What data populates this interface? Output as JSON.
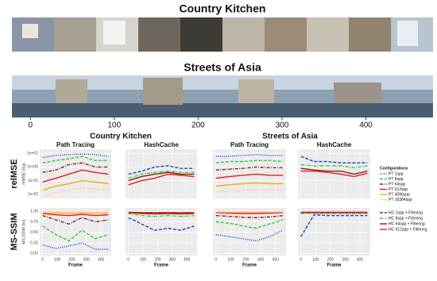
{
  "figure": {
    "strips": [
      {
        "title": "Country Kitchen"
      },
      {
        "title": "Streets of Asia",
        "xlim": [
          -22,
          480
        ],
        "xticks": [
          0,
          100,
          200,
          300,
          400
        ]
      }
    ],
    "groups": [
      "Country Kitchen",
      "Streets of Asia"
    ],
    "rows": [
      "relMSE",
      "MS-SSIM"
    ]
  },
  "chart_data": [
    {
      "type": "line",
      "title": "Path Tracing",
      "ylabel": "relMSE (log)",
      "legend_title": "Configurations",
      "log_y": true,
      "x": [
        0,
        90,
        180,
        270,
        360,
        450
      ],
      "xlim": [
        -20,
        470
      ],
      "xticks": [
        0,
        100,
        200,
        300,
        400
      ],
      "ylim": [
        0.005,
        20
      ],
      "yticks": [
        {
          "value": 10,
          "label": "1e+01"
        },
        {
          "value": 1,
          "label": "1e+00"
        },
        {
          "value": 0.1,
          "label": "1e-01"
        },
        {
          "value": 0.01,
          "label": "1e-02"
        }
      ],
      "grid": true,
      "series": [
        {
          "name": "PT 1spp",
          "color": "#1f3fd0",
          "dash": "dotted",
          "values": [
            5,
            7,
            8,
            9,
            8,
            6
          ]
        },
        {
          "name": "PT 8spp",
          "color": "#33cc33",
          "dash": "dashed",
          "values": [
            2,
            3,
            4,
            6,
            3,
            3
          ]
        },
        {
          "name": "PT 64spp",
          "color": "#8b1a1a",
          "dash": "dashdot",
          "values": [
            0.4,
            0.6,
            1.5,
            2,
            1,
            1
          ]
        },
        {
          "name": "PT 512spp",
          "color": "#e41a1c",
          "dash": "solid",
          "values": [
            0.08,
            0.15,
            0.3,
            0.6,
            0.4,
            0.3
          ]
        },
        {
          "name": "PT 4096spp",
          "color": "#ffa500",
          "dash": "solid",
          "values": [
            0.02,
            0.04,
            0.06,
            0.1,
            0.08,
            0.06
          ]
        },
        {
          "name": "PT 16384spp",
          "color": "#fdd9b5",
          "dash": "solid",
          "values": [
            0.008,
            0.012,
            0.02,
            0.03,
            0.025,
            0.02
          ]
        }
      ]
    },
    {
      "type": "line",
      "title": "HashCache",
      "log_y": true,
      "x": [
        0,
        90,
        180,
        270,
        360,
        450
      ],
      "xlim": [
        -20,
        470
      ],
      "xticks": [
        0,
        100,
        200,
        300,
        400
      ],
      "ylim": [
        0.005,
        20
      ],
      "yticks": [
        10,
        1,
        0.1,
        0.01
      ],
      "grid": true,
      "series": [
        {
          "name": "HC 1spp + Filtering",
          "color": "#1f3fd0",
          "dash": "dashed",
          "values": [
            0.3,
            0.5,
            1,
            1.2,
            0.8,
            0.8
          ]
        },
        {
          "name": "HC 8spp + Filtering",
          "color": "#33cc33",
          "dash": "dashdot",
          "values": [
            0.15,
            0.3,
            0.4,
            0.5,
            0.4,
            0.4
          ]
        },
        {
          "name": "HC 64spp + Filtering",
          "color": "#8b1a1a",
          "dash": "solid",
          "values": [
            0.1,
            0.2,
            0.3,
            0.4,
            0.3,
            0.3
          ]
        },
        {
          "name": "HC 512spp + Filtering",
          "color": "#e41a1c",
          "dash": "solid",
          "values": [
            0.05,
            0.1,
            0.15,
            0.3,
            0.25,
            0.2
          ]
        }
      ]
    },
    {
      "type": "line",
      "title": "Path Tracing",
      "log_y": true,
      "x": [
        0,
        90,
        180,
        270,
        360,
        450
      ],
      "xlim": [
        -20,
        470
      ],
      "xticks": [
        0,
        100,
        200,
        300,
        400
      ],
      "ylim": [
        0.005,
        20
      ],
      "yticks": [
        10,
        1,
        0.1,
        0.01
      ],
      "grid": true,
      "series": [
        {
          "name": "PT 1spp",
          "color": "#1f3fd0",
          "dash": "dotted",
          "values": [
            6,
            6,
            7,
            8,
            7,
            7
          ]
        },
        {
          "name": "PT 8spp",
          "color": "#33cc33",
          "dash": "dashed",
          "values": [
            2,
            2.5,
            2.5,
            3,
            3,
            2.5
          ]
        },
        {
          "name": "PT 64spp",
          "color": "#8b1a1a",
          "dash": "dashdot",
          "values": [
            0.6,
            0.7,
            0.8,
            1,
            0.9,
            0.9
          ]
        },
        {
          "name": "PT 512spp",
          "color": "#e41a1c",
          "dash": "solid",
          "values": [
            0.15,
            0.2,
            0.25,
            0.3,
            0.25,
            0.25
          ]
        },
        {
          "name": "PT 4096spp",
          "color": "#ffa500",
          "dash": "solid",
          "values": [
            0.04,
            0.05,
            0.06,
            0.07,
            0.06,
            0.06
          ]
        },
        {
          "name": "PT 16384spp",
          "color": "#fdd9b5",
          "dash": "solid",
          "values": [
            0.015,
            0.018,
            0.02,
            0.022,
            0.02,
            0.02
          ]
        }
      ]
    },
    {
      "type": "line",
      "title": "HashCache",
      "log_y": true,
      "x": [
        0,
        90,
        180,
        270,
        360,
        450
      ],
      "xlim": [
        -20,
        470
      ],
      "xticks": [
        0,
        100,
        200,
        300,
        400
      ],
      "ylim": [
        0.005,
        20
      ],
      "yticks": [
        10,
        1,
        0.1,
        0.01
      ],
      "grid": true,
      "series": [
        {
          "name": "HC 1spp + Filtering",
          "color": "#1f3fd0",
          "dash": "dashed",
          "values": [
            6,
            2.5,
            2.5,
            2,
            2,
            2
          ]
        },
        {
          "name": "HC 8spp + Filtering",
          "color": "#33cc33",
          "dash": "dashdot",
          "values": [
            1.5,
            1.2,
            1.2,
            1.2,
            0.9,
            1.2
          ]
        },
        {
          "name": "HC 64spp + Filtering",
          "color": "#8b1a1a",
          "dash": "solid",
          "values": [
            0.8,
            0.6,
            0.5,
            0.5,
            0.3,
            0.5
          ]
        },
        {
          "name": "HC 512spp + Filtering",
          "color": "#e41a1c",
          "dash": "solid",
          "values": [
            0.5,
            0.5,
            0.4,
            0.3,
            0.2,
            0.35
          ]
        }
      ]
    },
    {
      "type": "line",
      "ylabel": "MS-SSIM (lin)",
      "xlabel": "Frame",
      "x": [
        0,
        90,
        180,
        270,
        360,
        450
      ],
      "xlim": [
        -20,
        470
      ],
      "xticks": [
        0,
        100,
        200,
        300,
        400
      ],
      "ylim": [
        -0.05,
        1.08
      ],
      "yticks": [
        {
          "value": 1,
          "label": "1.00"
        },
        {
          "value": 0.75,
          "label": "0.75"
        },
        {
          "value": 0.5,
          "label": "0.50"
        },
        {
          "value": 0.25,
          "label": "0.25"
        },
        {
          "value": 0,
          "label": "0.00"
        }
      ],
      "grid": true,
      "series": [
        {
          "name": "PT 1spp",
          "color": "#1f3fd0",
          "dash": "dotted",
          "values": [
            0.2,
            0.12,
            0.18,
            0.25,
            0.1,
            0.1
          ]
        },
        {
          "name": "PT 8spp",
          "color": "#33cc33",
          "dash": "dashed",
          "values": [
            0.65,
            0.45,
            0.3,
            0.55,
            0.35,
            0.45
          ]
        },
        {
          "name": "PT 64spp",
          "color": "#8b1a1a",
          "dash": "dashdot",
          "values": [
            0.9,
            0.8,
            0.7,
            0.85,
            0.75,
            0.8
          ]
        },
        {
          "name": "PT 512spp",
          "color": "#e41a1c",
          "dash": "solid",
          "values": [
            0.95,
            0.92,
            0.9,
            0.93,
            0.9,
            0.92
          ]
        },
        {
          "name": "PT 4096spp",
          "color": "#ffa500",
          "dash": "solid",
          "values": [
            0.98,
            0.97,
            0.96,
            0.97,
            0.96,
            0.97
          ]
        },
        {
          "name": "PT 16384spp",
          "color": "#fdd9b5",
          "dash": "solid",
          "values": [
            0.99,
            0.99,
            0.98,
            0.99,
            0.98,
            0.99
          ]
        }
      ]
    },
    {
      "type": "line",
      "xlabel": "Frame",
      "x": [
        0,
        90,
        180,
        270,
        360,
        450
      ],
      "xlim": [
        -20,
        470
      ],
      "xticks": [
        0,
        100,
        200,
        300,
        400
      ],
      "ylim": [
        -0.05,
        1.08
      ],
      "yticks": [
        1,
        0.75,
        0.5,
        0.25,
        0
      ],
      "grid": true,
      "series": [
        {
          "name": "HC 1spp + Filtering",
          "color": "#1f3fd0",
          "dash": "dashed",
          "values": [
            0.85,
            0.7,
            0.55,
            0.6,
            0.55,
            0.65
          ]
        },
        {
          "name": "HC 8spp + Filtering",
          "color": "#33cc33",
          "dash": "dashdot",
          "values": [
            0.95,
            0.9,
            0.88,
            0.9,
            0.88,
            0.9
          ]
        },
        {
          "name": "HC 64spp + Filtering",
          "color": "#8b1a1a",
          "dash": "solid",
          "values": [
            0.97,
            0.95,
            0.94,
            0.95,
            0.94,
            0.95
          ]
        },
        {
          "name": "HC 512spp + Filtering",
          "color": "#e41a1c",
          "dash": "solid",
          "values": [
            0.98,
            0.97,
            0.97,
            0.97,
            0.97,
            0.97
          ]
        }
      ]
    },
    {
      "type": "line",
      "xlabel": "Frame",
      "x": [
        0,
        90,
        180,
        270,
        360,
        450
      ],
      "xlim": [
        -20,
        470
      ],
      "xticks": [
        0,
        100,
        200,
        300,
        400
      ],
      "ylim": [
        -0.05,
        1.08
      ],
      "yticks": [
        1,
        0.75,
        0.5,
        0.25,
        0
      ],
      "grid": true,
      "series": [
        {
          "name": "PT 1spp",
          "color": "#1f3fd0",
          "dash": "dotted",
          "values": [
            0.45,
            0.4,
            0.35,
            0.3,
            0.4,
            0.55
          ]
        },
        {
          "name": "PT 8spp",
          "color": "#33cc33",
          "dash": "dashed",
          "values": [
            0.75,
            0.72,
            0.65,
            0.6,
            0.7,
            0.8
          ]
        },
        {
          "name": "PT 64spp",
          "color": "#8b1a1a",
          "dash": "dashdot",
          "values": [
            0.9,
            0.88,
            0.86,
            0.85,
            0.87,
            0.9
          ]
        },
        {
          "name": "PT 512spp",
          "color": "#e41a1c",
          "dash": "solid",
          "values": [
            0.97,
            0.96,
            0.95,
            0.95,
            0.96,
            0.97
          ]
        },
        {
          "name": "PT 4096spp",
          "color": "#ffa500",
          "dash": "solid",
          "values": [
            0.99,
            0.98,
            0.98,
            0.98,
            0.98,
            0.99
          ]
        },
        {
          "name": "PT 16384spp",
          "color": "#fdd9b5",
          "dash": "solid",
          "values": [
            0.99,
            0.99,
            0.99,
            0.99,
            0.99,
            0.99
          ]
        }
      ]
    },
    {
      "type": "line",
      "xlabel": "Frame",
      "x": [
        0,
        90,
        180,
        270,
        360,
        450
      ],
      "xlim": [
        -20,
        470
      ],
      "xticks": [
        0,
        100,
        200,
        300,
        400
      ],
      "ylim": [
        -0.05,
        1.08
      ],
      "yticks": [
        1,
        0.75,
        0.5,
        0.25,
        0
      ],
      "grid": true,
      "series": [
        {
          "name": "HC 1spp + Filtering",
          "color": "#1f3fd0",
          "dash": "dashed",
          "values": [
            0.4,
            0.92,
            0.9,
            0.9,
            0.9,
            0.9
          ]
        },
        {
          "name": "HC 8spp + Filtering",
          "color": "#33cc33",
          "dash": "dashdot",
          "values": [
            0.95,
            0.96,
            0.95,
            0.95,
            0.95,
            0.95
          ]
        },
        {
          "name": "HC 64spp + Filtering",
          "color": "#8b1a1a",
          "dash": "solid",
          "values": [
            0.97,
            0.97,
            0.97,
            0.97,
            0.97,
            0.97
          ]
        },
        {
          "name": "HC 512spp + Filtering",
          "color": "#e41a1c",
          "dash": "solid",
          "values": [
            0.98,
            0.98,
            0.98,
            0.98,
            0.98,
            0.98
          ]
        }
      ]
    }
  ]
}
